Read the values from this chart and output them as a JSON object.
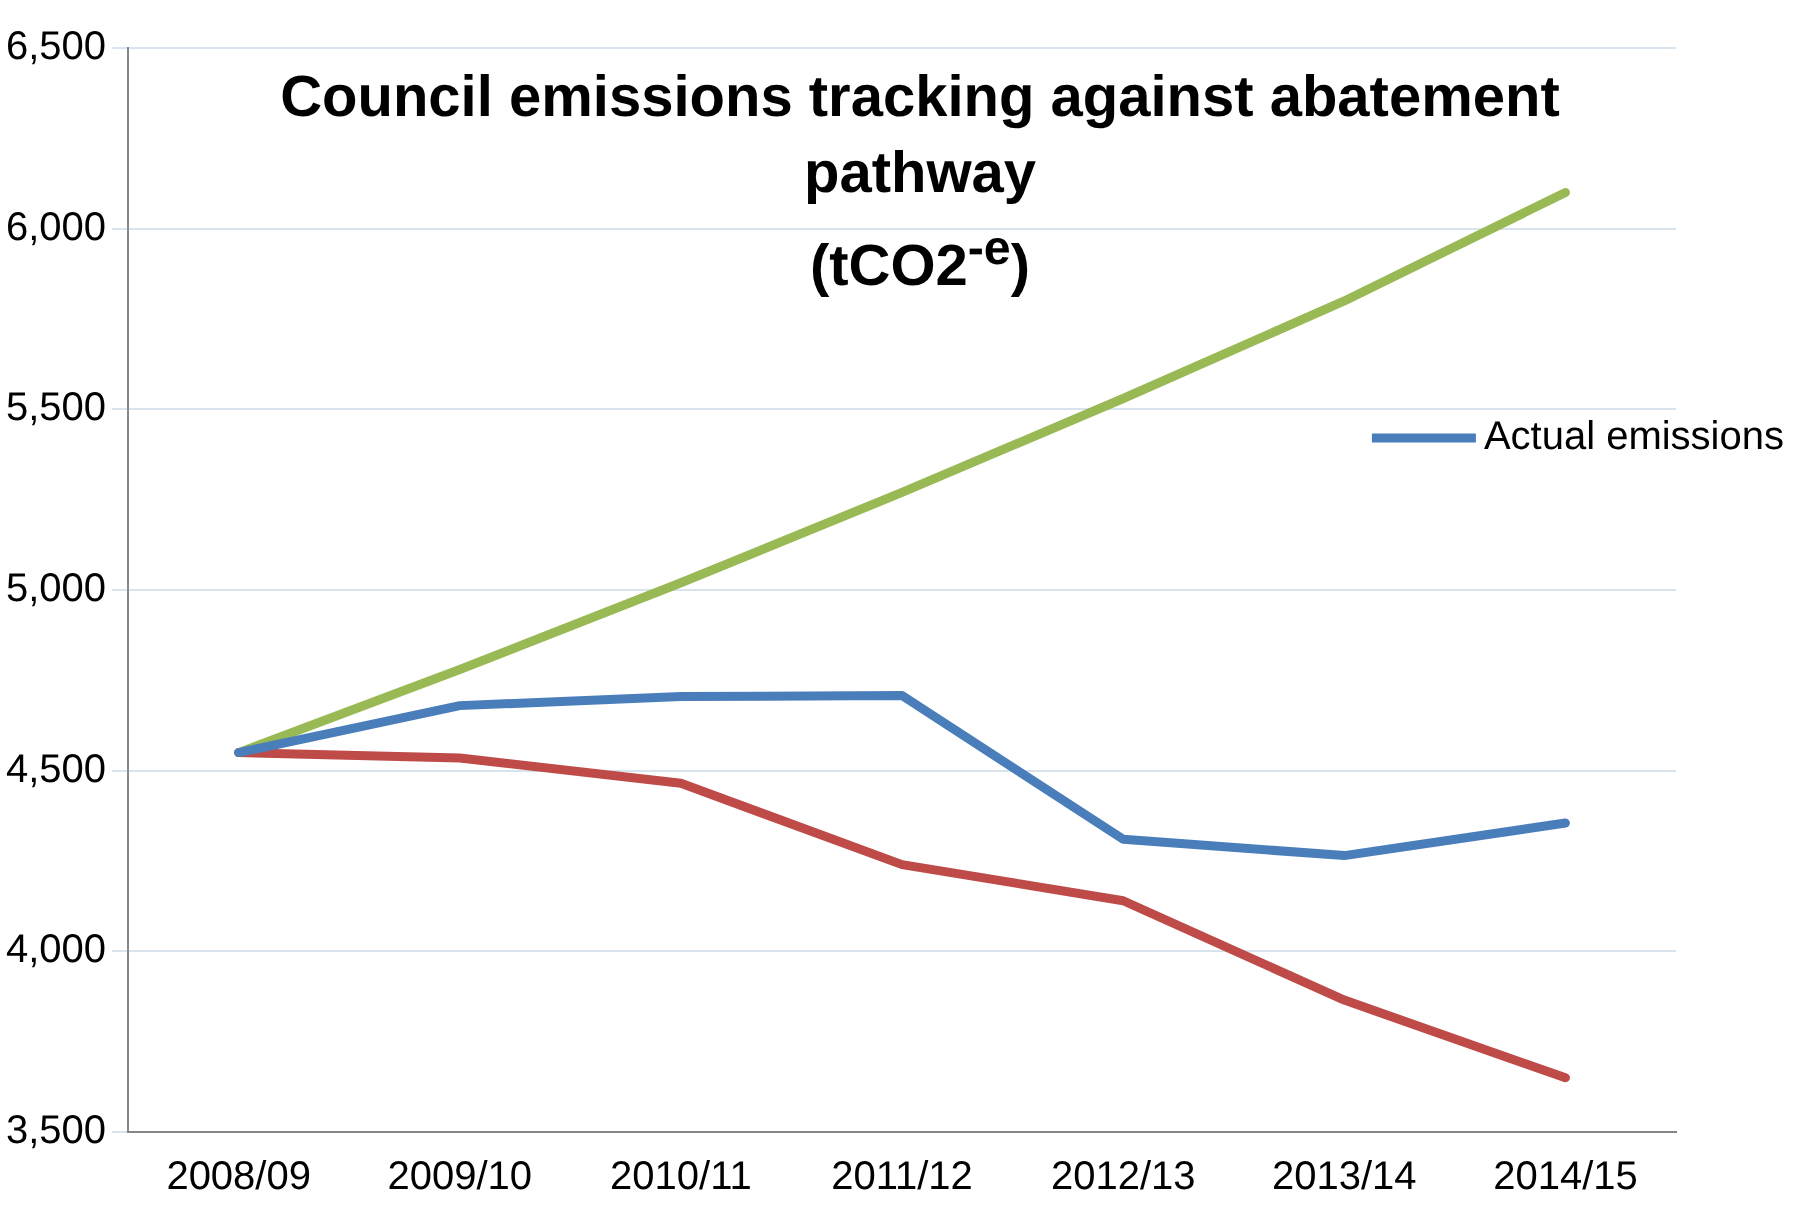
{
  "chart_data": {
    "type": "line",
    "title": "Council emissions tracking against abatement pathway",
    "subtitle": "(tCO2$^{-e}$)",
    "categories": [
      "2008/09",
      "2009/10",
      "2010/11",
      "2011/12",
      "2012/13",
      "2013/14",
      "2014/15"
    ],
    "series": [
      {
        "name": "Actual emissions",
        "color": "#4a7ebb",
        "values": [
          4550,
          4680,
          4705,
          4708,
          4310,
          4265,
          4355
        ]
      },
      {
        "color": "#be4b48",
        "values": [
          4550,
          4535,
          4465,
          4240,
          4140,
          3865,
          3650
        ]
      },
      {
        "color": "#98b954",
        "values": [
          4550,
          4780,
          5020,
          5270,
          5530,
          5800,
          6100
        ]
      }
    ],
    "ylim": [
      3500,
      6500
    ],
    "yticks": [
      {
        "value": 3500,
        "label": "3,500"
      },
      {
        "value": 4000,
        "label": "4,000"
      },
      {
        "value": 4500,
        "label": "4,500"
      },
      {
        "value": 5000,
        "label": "5,000"
      },
      {
        "value": 5500,
        "label": "5,500"
      },
      {
        "value": 6000,
        "label": "6,000"
      },
      {
        "value": 6500,
        "label": "6,500"
      }
    ],
    "grid": "y",
    "legend": "right",
    "marker": "none",
    "line_style": "solid"
  }
}
